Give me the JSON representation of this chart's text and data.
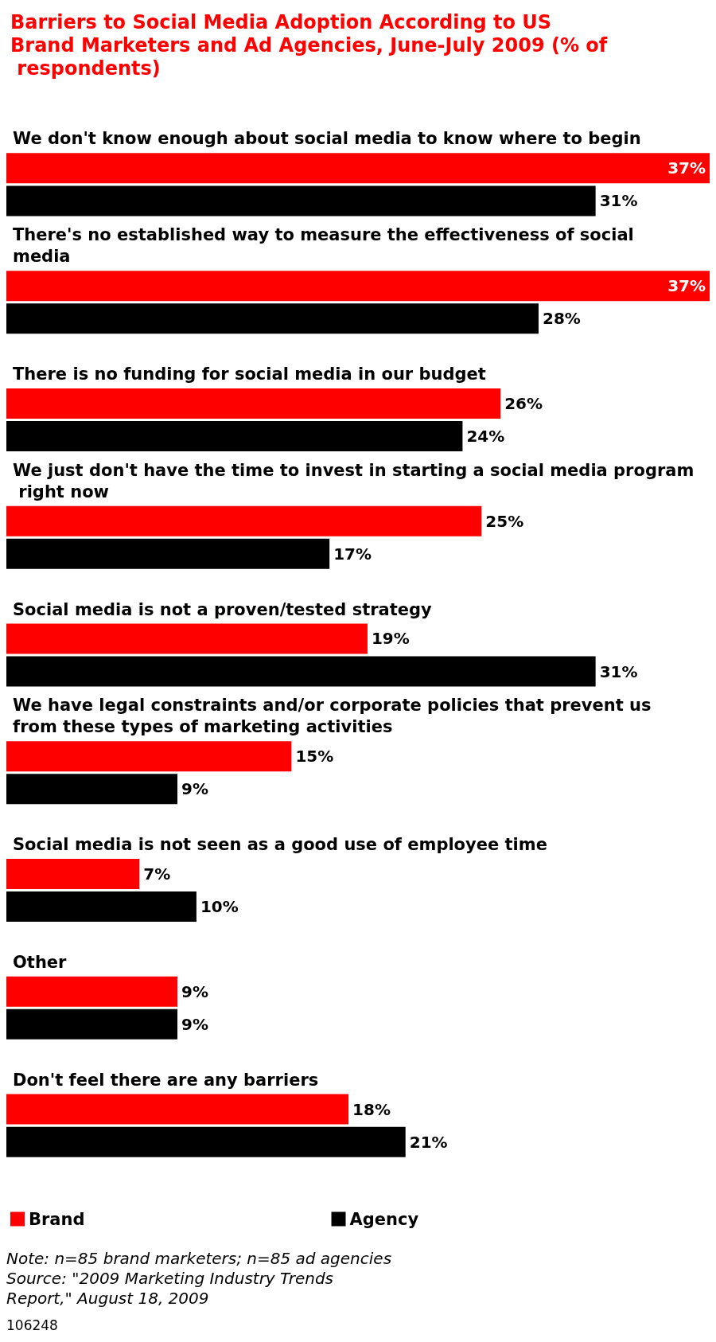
{
  "chart_data": {
    "type": "bar",
    "orientation": "horizontal",
    "title": "Barriers to Social Media Adoption According to US Brand Marketers and Ad Agencies, June-July 2009 (% of respondents)",
    "categories": [
      "We don't know enough about social media to know where to begin",
      "There's no established way to measure the effectiveness of social media",
      "There is no funding for social media in our budget",
      "We just don't have the time to invest in starting a social media program right now",
      "Social media is not a proven/tested strategy",
      "We have legal constraints and/or corporate policies that prevent us from these types of marketing activities",
      "Social media is not seen as a good use of employee time",
      "Other",
      "Don't feel there are any barriers"
    ],
    "series": [
      {
        "name": "Brand",
        "color": "#ff0000",
        "values": [
          37,
          37,
          26,
          25,
          19,
          15,
          7,
          9,
          18
        ],
        "value_labels": [
          "37%",
          "37%",
          "26%",
          "25%",
          "19%",
          "15%",
          "7%",
          "9%",
          "18%"
        ]
      },
      {
        "name": "Agency",
        "color": "#000000",
        "values": [
          31,
          28,
          24,
          17,
          31,
          9,
          10,
          9,
          21
        ],
        "value_labels": [
          "31%",
          "28%",
          "24%",
          "17%",
          "31%",
          "9%",
          "10%",
          "9%",
          "21%"
        ]
      }
    ],
    "legend": "bottom",
    "annotations": [
      "Note: n=85 brand marketers; n=85 ad agencies",
      "Source: \"2009 Marketing Industry Trends Report,\" August 18, 2009",
      "106248"
    ]
  }
}
